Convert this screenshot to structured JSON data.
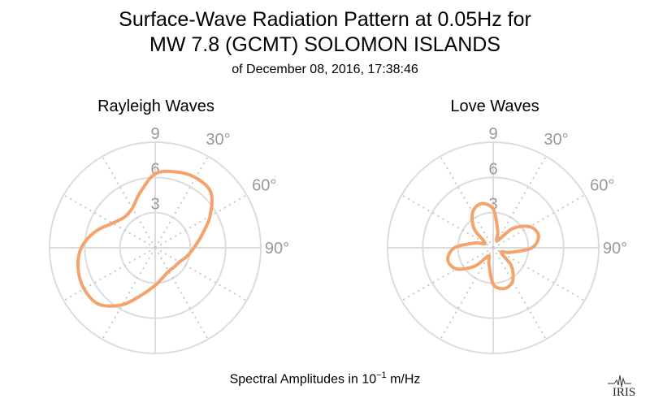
{
  "header": {
    "title_line1": "Surface-Wave Radiation Pattern at 0.05Hz for",
    "title_line2": "MW 7.8 (GCMT) SOLOMON ISLANDS",
    "subtitle": "of December 08, 2016, 17:38:46"
  },
  "footer": {
    "label_prefix": "Spectral Amplitudes in ",
    "unit_base": "10",
    "unit_exp": "−1",
    "unit_suffix": " m/Hz"
  },
  "logo": {
    "text": "IRIS",
    "icon": "iris-seismogram-logo"
  },
  "colors": {
    "pattern": "#f4a36c",
    "grid": "#dcdcdc",
    "grid_dotted": "#c8c8c8",
    "tick_text": "#999999"
  },
  "chart_data": [
    {
      "type": "polar-line",
      "title": "Rayleigh Waves",
      "radial_ticks": [
        "3",
        "6",
        "9"
      ],
      "angle_ticks": [
        "30°",
        "60°",
        "90°"
      ],
      "rlim": [
        0,
        9
      ],
      "angle_zero": "north",
      "direction": "clockwise",
      "grid": true,
      "series": [
        {
          "theta_deg": [
            0,
            15,
            30,
            45,
            60,
            75,
            90,
            105,
            120,
            135,
            150,
            165,
            180,
            195,
            210,
            225,
            240,
            255,
            270,
            285,
            300,
            315,
            330,
            345
          ],
          "r": [
            6.3,
            6.7,
            6.9,
            6.7,
            5.4,
            4.1,
            3.3,
            2.8,
            2.4,
            2.3,
            2.3,
            2.6,
            3.2,
            4.1,
            5.6,
            6.8,
            7.0,
            6.8,
            6.3,
            5.3,
            4.2,
            3.7,
            3.9,
            4.9
          ]
        }
      ]
    },
    {
      "type": "polar-line",
      "title": "Love Waves",
      "radial_ticks": [
        "3",
        "6",
        "9"
      ],
      "angle_ticks": [
        "30°",
        "60°",
        "90°"
      ],
      "rlim": [
        0,
        9
      ],
      "angle_zero": "north",
      "direction": "clockwise",
      "grid": true,
      "series": [
        {
          "theta_deg": [
            0,
            15,
            30,
            45,
            60,
            75,
            90,
            105,
            120,
            135,
            150,
            165,
            180,
            195,
            210,
            225,
            240,
            255,
            270,
            285,
            300,
            315,
            330,
            345
          ],
          "r": [
            3.3,
            1.5,
            0.7,
            2.3,
            3.6,
            4.0,
            3.3,
            1.5,
            0.8,
            2.2,
            3.3,
            3.6,
            3.1,
            1.4,
            0.8,
            2.2,
            3.6,
            4.0,
            3.3,
            1.6,
            0.8,
            2.3,
            3.5,
            3.9
          ]
        }
      ]
    }
  ]
}
